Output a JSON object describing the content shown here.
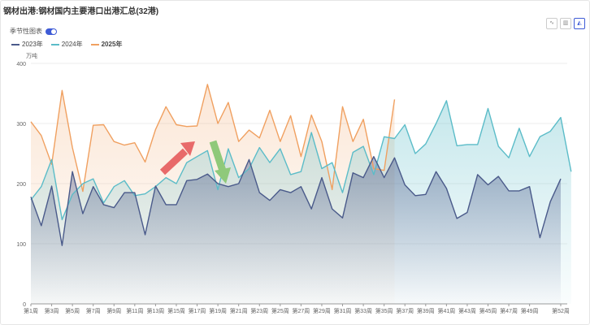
{
  "title": "钢材出港:钢材国内主要港口出港汇总(32港)",
  "toggle_label": "季节性图表",
  "toolbar": [
    "line-chart-icon",
    "bar-chart-icon",
    "area-chart-icon"
  ],
  "colors": {
    "s2023": "#4a5a8a",
    "s2024": "#5bbcc8",
    "s2025": "#f0a060"
  },
  "chart_data": {
    "type": "area",
    "unit": "万吨",
    "ylim": [
      0,
      400
    ],
    "yticks": [
      0,
      100,
      200,
      300,
      400
    ],
    "x_tick_labels": [
      "第1周",
      "第3周",
      "第5周",
      "第7周",
      "第9周",
      "第11周",
      "第13周",
      "第15周",
      "第17周",
      "第19周",
      "第21周",
      "第23周",
      "第25周",
      "第27周",
      "第29周",
      "第31周",
      "第33周",
      "第35周",
      "第37周",
      "第39周",
      "第41周",
      "第43周",
      "第45周",
      "第47周",
      "第49周",
      "第52周"
    ],
    "x_tick_weeks": [
      1,
      3,
      5,
      7,
      9,
      11,
      13,
      15,
      17,
      19,
      21,
      23,
      25,
      27,
      29,
      31,
      33,
      35,
      37,
      39,
      41,
      43,
      45,
      47,
      49,
      52
    ],
    "legend_placement": "top-left",
    "series": [
      {
        "name": "2023年",
        "values": [
          178,
          130,
          196,
          97,
          220,
          150,
          195,
          165,
          160,
          185,
          185,
          115,
          196,
          165,
          165,
          205,
          207,
          216,
          200,
          195,
          200,
          240,
          185,
          172,
          190,
          185,
          195,
          158,
          210,
          158,
          143,
          218,
          210,
          245,
          210,
          243,
          198,
          180,
          182,
          220,
          192,
          142,
          152,
          215,
          198,
          212,
          188,
          188,
          195,
          110,
          170,
          208
        ]
      },
      {
        "name": "2024年",
        "values": [
          173,
          195,
          240,
          140,
          182,
          200,
          208,
          168,
          195,
          205,
          180,
          183,
          195,
          210,
          200,
          235,
          245,
          255,
          190,
          258,
          210,
          225,
          260,
          235,
          258,
          215,
          220,
          285,
          225,
          235,
          185,
          252,
          262,
          215,
          278,
          275,
          298,
          250,
          266,
          300,
          338,
          263,
          265,
          265,
          325,
          262,
          243,
          292,
          245,
          278,
          287,
          310,
          220
        ]
      },
      {
        "name": "2025年",
        "values": [
          303,
          280,
          232,
          355,
          260,
          187,
          297,
          298,
          270,
          264,
          268,
          236,
          290,
          328,
          298,
          295,
          296,
          365,
          300,
          335,
          270,
          289,
          276,
          322,
          270,
          313,
          245,
          314,
          270,
          190,
          328,
          270,
          307,
          225,
          222,
          340
        ]
      }
    ]
  }
}
